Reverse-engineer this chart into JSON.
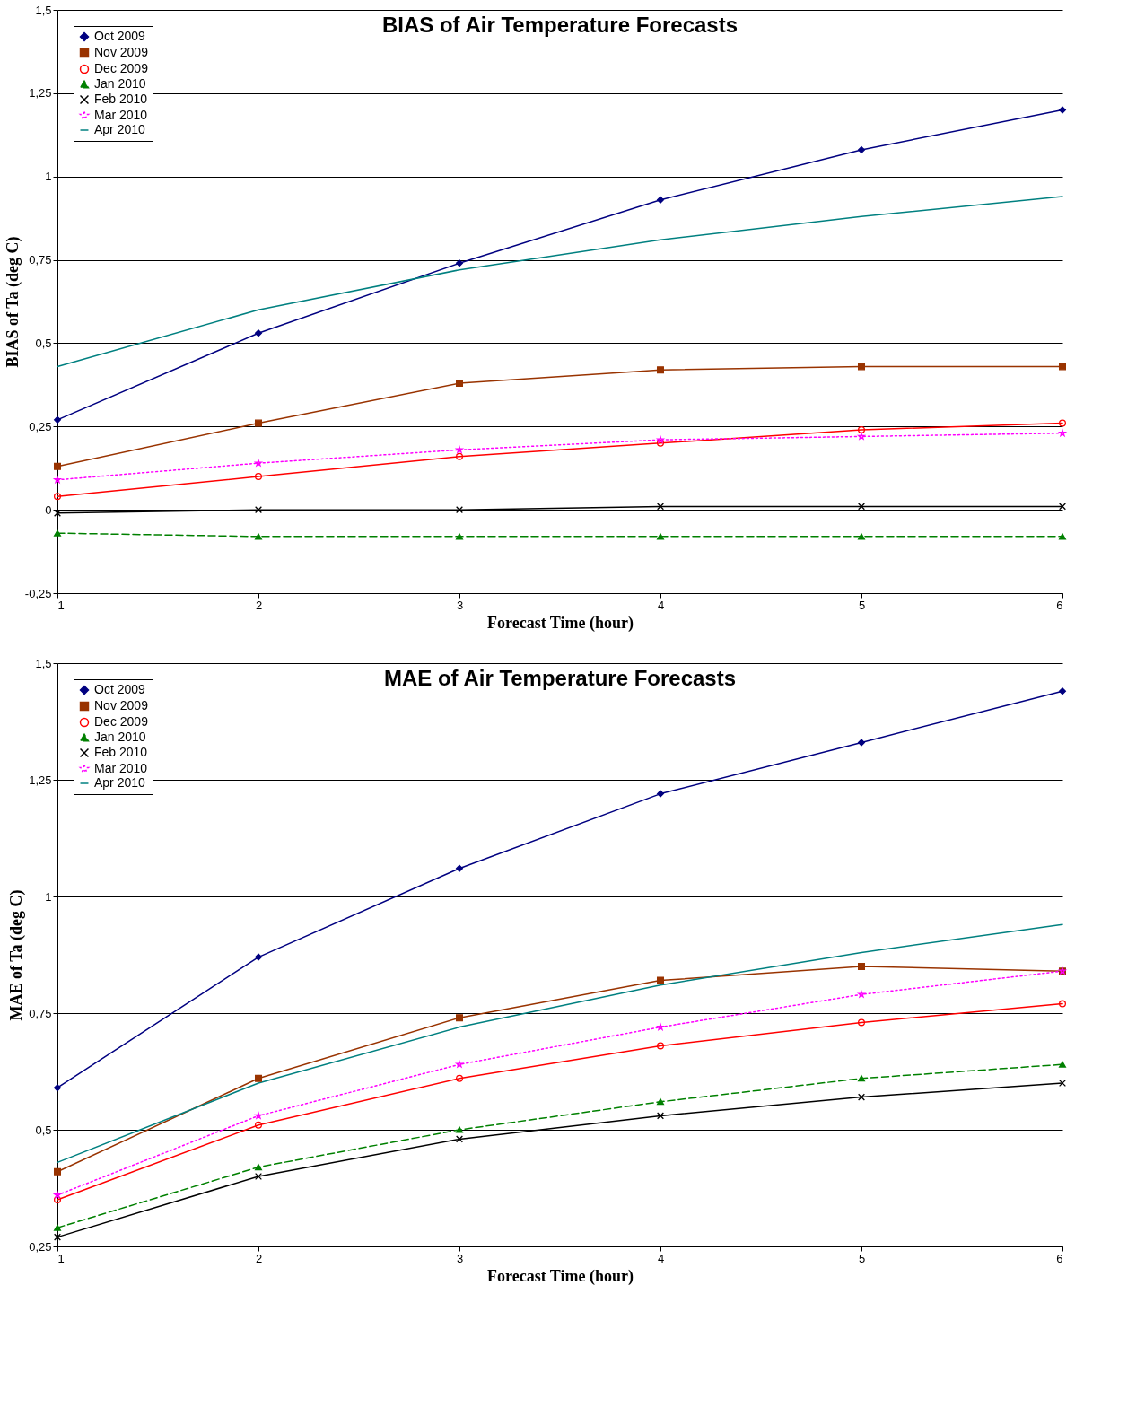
{
  "chart_data": [
    {
      "type": "line",
      "title": "BIAS of Air Temperature Forecasts",
      "xlabel": "Forecast Time (hour)",
      "ylabel": "BIAS of Ta (deg C)",
      "x": [
        1,
        2,
        3,
        4,
        5,
        6
      ],
      "xlim": [
        1,
        6
      ],
      "xticks": [
        1,
        2,
        3,
        4,
        5,
        6
      ],
      "ylim": [
        -0.25,
        1.5
      ],
      "yticks": [
        {
          "value": -0.25,
          "label": "-0,25"
        },
        0,
        {
          "value": 0.25,
          "label": "0,25"
        },
        {
          "value": 0.5,
          "label": "0,5"
        },
        {
          "value": 0.75,
          "label": "0,75"
        },
        1,
        {
          "value": 1.25,
          "label": "1,25"
        },
        {
          "value": 1.5,
          "label": "1,5"
        }
      ],
      "grid": "y",
      "legend": "top left",
      "series": [
        {
          "name": "Oct 2009",
          "color": "#000080",
          "marker": "diamond",
          "line_style": "solid",
          "values": [
            0.27,
            0.53,
            0.74,
            0.93,
            1.08,
            1.2
          ]
        },
        {
          "name": "Nov 2009",
          "color": "#993300",
          "marker": "square",
          "line_style": "solid",
          "values": [
            0.13,
            0.26,
            0.38,
            0.42,
            0.43,
            0.43
          ]
        },
        {
          "name": "Dec 2009",
          "color": "#ff0000",
          "marker": "circle",
          "line_style": "solid",
          "values": [
            0.04,
            0.1,
            0.16,
            0.2,
            0.24,
            0.26
          ]
        },
        {
          "name": "Jan 2010",
          "color": "#008000",
          "marker": "triangle",
          "line_style": "dashed",
          "values": [
            -0.07,
            -0.08,
            -0.08,
            -0.08,
            -0.08,
            -0.08
          ]
        },
        {
          "name": "Feb 2010",
          "color": "#000000",
          "marker": "cross",
          "line_style": "solid",
          "values": [
            -0.01,
            0,
            0,
            0.01,
            0.01,
            0.01
          ]
        },
        {
          "name": "Mar 2010",
          "color": "#ff00ff",
          "marker": "star",
          "line_style": "dotted",
          "values": [
            0.09,
            0.14,
            0.18,
            0.21,
            0.22,
            0.23
          ]
        },
        {
          "name": "Apr 2010",
          "color": "#008080",
          "marker": "none",
          "line_style": "solid",
          "values": [
            0.43,
            0.6,
            0.72,
            0.81,
            0.88,
            0.94
          ]
        }
      ]
    },
    {
      "type": "line",
      "title": "MAE of Air Temperature Forecasts",
      "xlabel": "Forecast Time (hour)",
      "ylabel": "MAE of Ta (deg C)",
      "x": [
        1,
        2,
        3,
        4,
        5,
        6
      ],
      "xlim": [
        1,
        6
      ],
      "xticks": [
        1,
        2,
        3,
        4,
        5,
        6
      ],
      "ylim": [
        0.25,
        1.5
      ],
      "yticks": [
        {
          "value": 0.25,
          "label": "0,25"
        },
        {
          "value": 0.5,
          "label": "0,5"
        },
        {
          "value": 0.75,
          "label": "0,75"
        },
        1,
        {
          "value": 1.25,
          "label": "1,25"
        },
        {
          "value": 1.5,
          "label": "1,5"
        }
      ],
      "grid": "y",
      "legend": "top left",
      "series": [
        {
          "name": "Oct 2009",
          "color": "#000080",
          "marker": "diamond",
          "line_style": "solid",
          "values": [
            0.59,
            0.87,
            1.06,
            1.22,
            1.33,
            1.44
          ]
        },
        {
          "name": "Nov 2009",
          "color": "#993300",
          "marker": "square",
          "line_style": "solid",
          "values": [
            0.41,
            0.61,
            0.74,
            0.82,
            0.85,
            0.84
          ]
        },
        {
          "name": "Dec 2009",
          "color": "#ff0000",
          "marker": "circle",
          "line_style": "solid",
          "values": [
            0.35,
            0.51,
            0.61,
            0.68,
            0.73,
            0.77
          ]
        },
        {
          "name": "Jan 2010",
          "color": "#008000",
          "marker": "triangle",
          "line_style": "dashed",
          "values": [
            0.29,
            0.42,
            0.5,
            0.56,
            0.61,
            0.64
          ]
        },
        {
          "name": "Feb 2010",
          "color": "#000000",
          "marker": "cross",
          "line_style": "solid",
          "values": [
            0.27,
            0.4,
            0.48,
            0.53,
            0.57,
            0.6
          ]
        },
        {
          "name": "Mar 2010",
          "color": "#ff00ff",
          "marker": "star",
          "line_style": "dotted",
          "values": [
            0.36,
            0.53,
            0.64,
            0.72,
            0.79,
            0.84
          ]
        },
        {
          "name": "Apr 2010",
          "color": "#008080",
          "marker": "none",
          "line_style": "solid",
          "values": [
            0.43,
            0.6,
            0.72,
            0.81,
            0.88,
            0.94
          ]
        }
      ]
    }
  ]
}
